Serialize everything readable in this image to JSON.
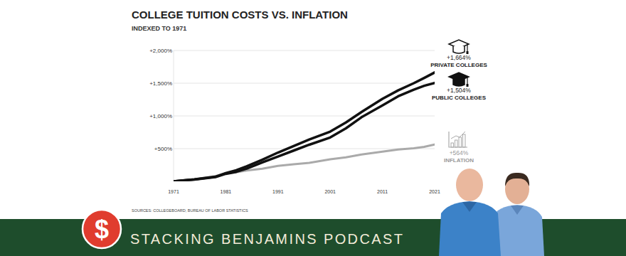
{
  "chart_data": {
    "type": "line",
    "title": "COLLEGE TUITION COSTS VS. INFLATION",
    "subtitle": "INDEXED TO 1971",
    "source": "SOURCES: COLLEGEBOARD; BUREAU OF LABOR STATISTICS",
    "x": [
      1971,
      1975,
      1979,
      1981,
      1983,
      1985,
      1988,
      1991,
      1994,
      1997,
      2001,
      2004,
      2007,
      2011,
      2014,
      2017,
      2019,
      2021
    ],
    "series": [
      {
        "name": "PRIVATE COLLEGES",
        "color": "#111111",
        "end_label": "+1,664%",
        "values": [
          0,
          30,
          70,
          125,
          170,
          230,
          330,
          440,
          540,
          640,
          760,
          900,
          1060,
          1260,
          1390,
          1500,
          1580,
          1664
        ]
      },
      {
        "name": "PUBLIC COLLEGES",
        "color": "#111111",
        "end_label": "+1,504%",
        "values": [
          0,
          28,
          65,
          115,
          145,
          195,
          290,
          380,
          470,
          560,
          670,
          810,
          980,
          1160,
          1300,
          1400,
          1460,
          1504
        ]
      },
      {
        "name": "INFLATION",
        "color": "#aaaaaa",
        "end_label": "+564%",
        "values": [
          0,
          32,
          79,
          124,
          139,
          165,
          193,
          236,
          261,
          282,
          337,
          367,
          411,
          455,
          487,
          505,
          527,
          564
        ]
      }
    ],
    "xlim": [
      1971,
      2021
    ],
    "xticks": [
      1971,
      1981,
      1991,
      2001,
      2011,
      2021
    ],
    "ylim": [
      0,
      2000
    ],
    "yticks": [
      {
        "value": 500,
        "label": "+500%"
      },
      {
        "value": 1000,
        "label": "+1,000%"
      },
      {
        "value": 1500,
        "label": "+1,500%"
      },
      {
        "value": 2000,
        "label": "+2,000%"
      }
    ],
    "grid": true
  },
  "banner": {
    "title": "STACKING BENJAMINS PODCAST",
    "logo": "$"
  }
}
